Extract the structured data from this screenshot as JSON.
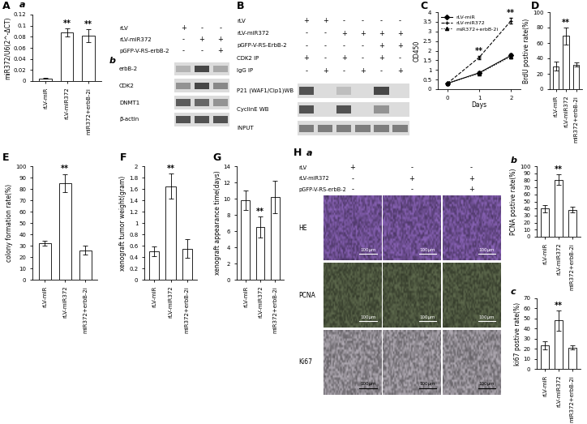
{
  "chart_data": [
    {
      "type": "bar",
      "panel": "A",
      "subpanel": "a",
      "categories": [
        "rLV-miR",
        "rLV-miR372",
        "miR372+erbB-2i"
      ],
      "values": [
        0.005,
        0.088,
        0.082
      ],
      "errors": [
        0.001,
        0.007,
        0.012
      ],
      "significance": [
        null,
        "**",
        "**"
      ],
      "ylabel": "miR372/U6(2^-ΔCT)",
      "ylim": [
        0,
        0.12
      ],
      "yticks": [
        0,
        0.02,
        0.04,
        0.06,
        0.08,
        0.1,
        0.12
      ],
      "color": "#ffffff",
      "grid": false
    },
    {
      "type": "line",
      "panel": "C",
      "x": [
        0,
        1,
        2
      ],
      "xlabel": "Days",
      "ylabel": "OD450",
      "xlim": [
        -0.3,
        2.3
      ],
      "xticks": [
        0,
        1,
        2
      ],
      "ylim": [
        0,
        4
      ],
      "yticks": [
        0,
        0.5,
        1,
        1.5,
        2,
        2.5,
        3,
        3.5,
        4
      ],
      "legend": "upper left",
      "grid": false,
      "series": [
        {
          "name": "rLV-miR",
          "color": "#000000",
          "marker": "diamond",
          "line_style": "solid",
          "values": [
            0.3,
            0.85,
            1.75
          ],
          "errors": [
            0.03,
            0.06,
            0.1
          ]
        },
        {
          "name": "rLV-miR372",
          "color": "#000000",
          "marker": "plus",
          "line_style": "dashed",
          "values": [
            0.3,
            1.65,
            3.55
          ],
          "errors": [
            0.03,
            0.08,
            0.15
          ]
        },
        {
          "name": "miR372+erbB-2i",
          "color": "#000000",
          "marker": "triangle",
          "line_style": "dotted",
          "values": [
            0.3,
            0.82,
            1.7
          ],
          "errors": [
            0.03,
            0.05,
            0.1
          ]
        }
      ],
      "annotations": [
        {
          "x": 1,
          "text": "**"
        },
        {
          "x": 2,
          "text": "**"
        }
      ]
    },
    {
      "type": "bar",
      "panel": "D",
      "categories": [
        "rLV-miR",
        "rLV-miR372",
        "miR372+erbB-2i"
      ],
      "values": [
        30,
        69,
        32
      ],
      "errors": [
        6,
        11,
        3
      ],
      "significance": [
        null,
        "**",
        null
      ],
      "ylabel": "BrdU postive rate(%)",
      "ylim": [
        0,
        100
      ],
      "yticks": [
        0,
        20,
        40,
        60,
        80,
        100
      ],
      "color": "#ffffff",
      "grid": false
    },
    {
      "type": "bar",
      "panel": "E",
      "categories": [
        "rLV-miR",
        "rLV-miR372",
        "miR372+erbB-2i"
      ],
      "values": [
        32,
        85,
        26
      ],
      "errors": [
        2,
        8,
        4
      ],
      "significance": [
        null,
        "**",
        null
      ],
      "ylabel": "colony formation rate(%)",
      "ylim": [
        0,
        100
      ],
      "yticks": [
        0,
        10,
        20,
        30,
        40,
        50,
        60,
        70,
        80,
        90,
        100
      ],
      "color": "#ffffff",
      "grid": false
    },
    {
      "type": "bar",
      "panel": "F",
      "categories": [
        "rLV-miR",
        "rLV-miR372",
        "miR372+erbB-2i"
      ],
      "values": [
        0.5,
        1.65,
        0.55
      ],
      "errors": [
        0.08,
        0.22,
        0.17
      ],
      "significance": [
        null,
        "**",
        null
      ],
      "ylabel": "xenograft tumor weight(gram)",
      "ylim": [
        0,
        2
      ],
      "yticks": [
        0,
        0.2,
        0.4,
        0.6,
        0.8,
        1,
        1.2,
        1.4,
        1.6,
        1.8,
        2
      ],
      "color": "#ffffff",
      "grid": false
    },
    {
      "type": "bar",
      "panel": "G",
      "categories": [
        "rLV-miR",
        "rLV-miR372",
        "miR372+erbB-2i"
      ],
      "values": [
        9.8,
        6.5,
        10.2
      ],
      "errors": [
        1.2,
        1.3,
        2.0
      ],
      "significance": [
        null,
        "**",
        null
      ],
      "ylabel": "xenograft appearance time(days)",
      "ylim": [
        0,
        14
      ],
      "yticks": [
        0,
        2,
        4,
        6,
        8,
        10,
        12,
        14
      ],
      "color": "#ffffff",
      "grid": false
    },
    {
      "type": "bar",
      "subpanel": "b",
      "categories": [
        "rLV-miR",
        "rLV-miR372",
        "miR372+erbB-2i"
      ],
      "values": [
        40,
        81,
        38
      ],
      "errors": [
        5,
        8,
        4
      ],
      "significance": [
        null,
        "**",
        null
      ],
      "ylabel": "PCNA postive rate(%)",
      "ylim": [
        0,
        100
      ],
      "yticks": [
        0,
        10,
        20,
        30,
        40,
        50,
        60,
        70,
        80,
        90,
        100
      ],
      "color": "#ffffff",
      "grid": false
    },
    {
      "type": "bar",
      "subpanel": "c",
      "categories": [
        "rLV-miR",
        "rLV-miR372",
        "miR372+erbB-2i"
      ],
      "values": [
        23,
        48,
        21
      ],
      "errors": [
        4,
        10,
        2
      ],
      "significance": [
        null,
        "**",
        null
      ],
      "ylabel": "ki67 postive rate(%)",
      "ylim": [
        0,
        70
      ],
      "yticks": [
        0,
        10,
        20,
        30,
        40,
        50,
        60,
        70
      ],
      "color": "#ffffff",
      "grid": false
    }
  ],
  "blots": [
    {
      "subpanel": "b",
      "conditions": [
        {
          "label": "rLV",
          "marks": [
            "+",
            "-",
            "-"
          ]
        },
        {
          "label": "rLV-miR372",
          "marks": [
            "-",
            "+",
            "+"
          ]
        },
        {
          "label": "pGFP-V-RS-erbB-2",
          "marks": [
            "-",
            "-",
            "+"
          ]
        }
      ],
      "bands": [
        {
          "label": "erbB-2",
          "intensity": [
            0.35,
            0.85,
            0.4
          ]
        },
        {
          "label": "CDK2",
          "intensity": [
            0.5,
            0.85,
            0.55
          ]
        },
        {
          "label": "DNMT1",
          "intensity": [
            0.75,
            0.7,
            0.5
          ]
        },
        {
          "label": "β-actin",
          "intensity": [
            0.8,
            0.8,
            0.8
          ]
        }
      ]
    },
    {
      "panel": "B",
      "conditions": [
        {
          "label": "rLV",
          "marks": [
            "+",
            "+",
            "-",
            "-",
            "-",
            "-"
          ]
        },
        {
          "label": "rLV-miR372",
          "marks": [
            "-",
            "-",
            "+",
            "+",
            "+",
            "+"
          ]
        },
        {
          "label": "pGFP-V-RS-ErbB-2",
          "marks": [
            "-",
            "-",
            "-",
            "-",
            "+",
            "+"
          ]
        },
        {
          "label": "CDK2 IP",
          "marks": [
            "+",
            "-",
            "+",
            "-",
            "+",
            "-"
          ]
        },
        {
          "label": "IgG IP",
          "marks": [
            "-",
            "+",
            "-",
            "+",
            "-",
            "+"
          ]
        }
      ],
      "bands": [
        {
          "label": "P21 (WAF1/Cip1)WB",
          "intensity": [
            0.8,
            0,
            0.3,
            0,
            0.85,
            0
          ]
        },
        {
          "label": "CyclinE WB",
          "intensity": [
            0.8,
            0,
            0.8,
            0,
            0.5,
            0
          ]
        },
        {
          "label": "INPUT",
          "intensity": [
            0.6,
            0.6,
            0.6,
            0.6,
            0.6,
            0.6
          ]
        }
      ]
    }
  ],
  "histology": {
    "panel": "H",
    "subpanel": "a",
    "conditions": [
      {
        "label": "rLV",
        "marks": [
          "+",
          "-",
          "-"
        ]
      },
      {
        "label": "rLV-miR372",
        "marks": [
          "-",
          "+",
          "+"
        ]
      },
      {
        "label": "pGFP-V-RS-erbB-2",
        "marks": [
          "-",
          "-",
          "+"
        ]
      }
    ],
    "rows": [
      {
        "label": "HE",
        "scale_bar": "100μm",
        "color": "#8a63b8"
      },
      {
        "label": "PCNA",
        "scale_bar": "100μm",
        "color": "#5f6b4e"
      },
      {
        "label": "Ki67",
        "scale_bar": "100μm",
        "color": "#b5afb8"
      }
    ]
  }
}
